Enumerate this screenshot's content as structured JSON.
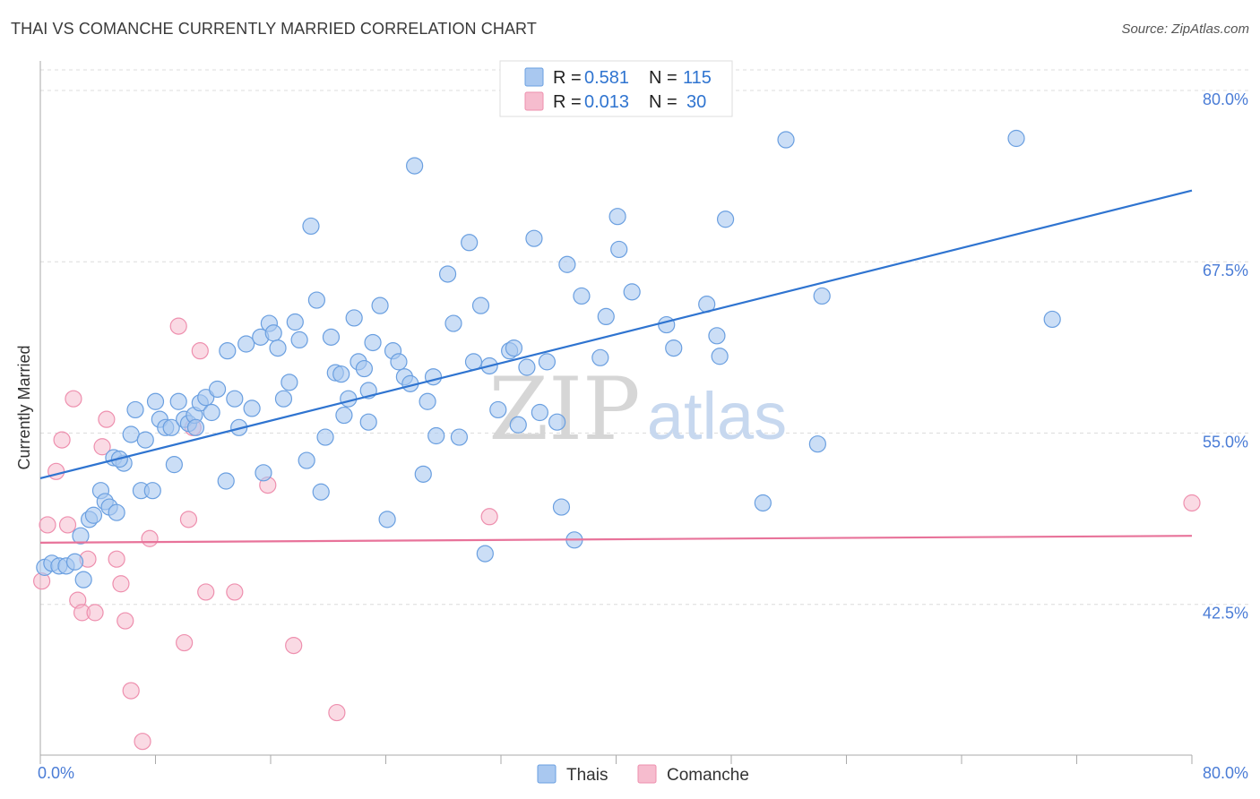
{
  "header": {
    "title": "THAI VS COMANCHE CURRENTLY MARRIED CORRELATION CHART",
    "source": "Source: ZipAtlas.com"
  },
  "watermark": {
    "part1": "ZIP",
    "part2": "atlas"
  },
  "colors": {
    "thais_fill": "#a9c8f0",
    "thais_stroke": "#6a9fe0",
    "thais_line": "#2f74d0",
    "comanche_fill": "#f6bcce",
    "comanche_stroke": "#ee8fae",
    "comanche_line": "#e8739a",
    "label_blue": "#4a7cd6",
    "grid": "#dcdcdc"
  },
  "chart_data": {
    "type": "scatter",
    "title": "THAI VS COMANCHE CURRENTLY MARRIED CORRELATION CHART",
    "xlabel": "",
    "ylabel": "Currently Married",
    "xlim": [
      0,
      80
    ],
    "ylim": [
      31.5,
      81.5
    ],
    "x_tick_labels": [
      "0.0%",
      "80.0%"
    ],
    "y_ticks": [
      42.5,
      55.0,
      67.5,
      80.0
    ],
    "y_tick_labels": [
      "42.5%",
      "55.0%",
      "67.5%",
      "80.0%"
    ],
    "grid": true,
    "legend_top": [
      {
        "name": "Thais",
        "r_label": "R =",
        "r": "0.581",
        "n_label": "N =",
        "n": "115"
      },
      {
        "name": "Comanche",
        "r_label": "R =",
        "r": "0.013",
        "n_label": "N =",
        "n": "30"
      }
    ],
    "legend_bottom": [
      "Thais",
      "Comanche"
    ],
    "series": [
      {
        "name": "Thais",
        "trend": {
          "x": [
            0,
            80
          ],
          "y": [
            51.7,
            72.7
          ]
        },
        "points": [
          [
            0.3,
            45.2
          ],
          [
            0.8,
            45.5
          ],
          [
            1.3,
            45.3
          ],
          [
            1.8,
            45.3
          ],
          [
            2.4,
            45.6
          ],
          [
            3.0,
            44.3
          ],
          [
            2.8,
            47.5
          ],
          [
            3.4,
            48.7
          ],
          [
            3.7,
            49.0
          ],
          [
            4.2,
            50.8
          ],
          [
            4.5,
            50.0
          ],
          [
            4.8,
            49.6
          ],
          [
            5.3,
            49.2
          ],
          [
            5.1,
            53.2
          ],
          [
            5.8,
            52.8
          ],
          [
            6.3,
            54.9
          ],
          [
            6.6,
            56.7
          ],
          [
            7.0,
            50.8
          ],
          [
            7.3,
            54.5
          ],
          [
            7.8,
            50.8
          ],
          [
            8.0,
            57.3
          ],
          [
            8.3,
            56.0
          ],
          [
            8.7,
            55.4
          ],
          [
            9.1,
            55.4
          ],
          [
            9.3,
            52.7
          ],
          [
            9.6,
            57.3
          ],
          [
            10.0,
            56.0
          ],
          [
            10.3,
            55.7
          ],
          [
            10.7,
            56.3
          ],
          [
            11.1,
            57.2
          ],
          [
            11.5,
            57.6
          ],
          [
            11.9,
            56.5
          ],
          [
            12.3,
            58.2
          ],
          [
            13.0,
            61.0
          ],
          [
            13.5,
            57.5
          ],
          [
            13.8,
            55.4
          ],
          [
            14.3,
            61.5
          ],
          [
            14.7,
            56.8
          ],
          [
            15.3,
            62.0
          ],
          [
            15.9,
            63.0
          ],
          [
            16.2,
            62.3
          ],
          [
            16.5,
            61.2
          ],
          [
            16.9,
            57.5
          ],
          [
            17.3,
            58.7
          ],
          [
            17.7,
            63.1
          ],
          [
            18.0,
            61.8
          ],
          [
            18.5,
            53.0
          ],
          [
            18.8,
            70.1
          ],
          [
            19.2,
            64.7
          ],
          [
            19.5,
            50.7
          ],
          [
            19.8,
            54.7
          ],
          [
            20.2,
            62.0
          ],
          [
            20.5,
            59.4
          ],
          [
            20.9,
            59.3
          ],
          [
            21.1,
            56.3
          ],
          [
            21.4,
            57.5
          ],
          [
            21.8,
            63.4
          ],
          [
            22.1,
            60.2
          ],
          [
            22.5,
            59.7
          ],
          [
            22.8,
            58.1
          ],
          [
            23.1,
            61.6
          ],
          [
            23.6,
            64.3
          ],
          [
            24.1,
            48.7
          ],
          [
            24.5,
            61.0
          ],
          [
            24.9,
            60.2
          ],
          [
            25.3,
            59.1
          ],
          [
            25.7,
            58.6
          ],
          [
            26.0,
            74.5
          ],
          [
            26.6,
            52.0
          ],
          [
            26.9,
            57.3
          ],
          [
            27.3,
            59.1
          ],
          [
            27.5,
            54.8
          ],
          [
            28.3,
            66.6
          ],
          [
            28.7,
            63.0
          ],
          [
            29.1,
            54.7
          ],
          [
            29.8,
            68.9
          ],
          [
            30.1,
            60.2
          ],
          [
            30.9,
            46.2
          ],
          [
            30.6,
            64.3
          ],
          [
            31.2,
            59.9
          ],
          [
            31.8,
            56.7
          ],
          [
            32.6,
            61.0
          ],
          [
            32.9,
            61.2
          ],
          [
            33.2,
            55.6
          ],
          [
            33.8,
            59.8
          ],
          [
            34.3,
            69.2
          ],
          [
            34.7,
            56.5
          ],
          [
            35.2,
            60.2
          ],
          [
            35.9,
            55.8
          ],
          [
            36.2,
            49.6
          ],
          [
            36.6,
            67.3
          ],
          [
            37.1,
            47.2
          ],
          [
            37.6,
            65.0
          ],
          [
            38.9,
            60.5
          ],
          [
            39.3,
            63.5
          ],
          [
            40.2,
            68.4
          ],
          [
            41.1,
            65.3
          ],
          [
            43.5,
            62.9
          ],
          [
            44.0,
            61.2
          ],
          [
            46.3,
            64.4
          ],
          [
            47.0,
            62.1
          ],
          [
            47.2,
            60.6
          ],
          [
            47.6,
            70.6
          ],
          [
            50.2,
            49.9
          ],
          [
            51.8,
            76.4
          ],
          [
            54.0,
            54.2
          ],
          [
            54.3,
            65.0
          ],
          [
            67.8,
            76.5
          ],
          [
            70.3,
            63.3
          ],
          [
            40.1,
            70.8
          ],
          [
            22.8,
            55.8
          ],
          [
            10.8,
            55.4
          ],
          [
            5.5,
            53.1
          ],
          [
            12.9,
            51.5
          ],
          [
            15.5,
            52.1
          ]
        ]
      },
      {
        "name": "Comanche",
        "trend": {
          "x": [
            0,
            80
          ],
          "y": [
            47.0,
            47.5
          ]
        },
        "points": [
          [
            0.1,
            44.2
          ],
          [
            0.5,
            48.3
          ],
          [
            1.1,
            52.2
          ],
          [
            1.5,
            54.5
          ],
          [
            1.9,
            48.3
          ],
          [
            2.3,
            57.5
          ],
          [
            2.6,
            42.8
          ],
          [
            2.9,
            41.9
          ],
          [
            3.3,
            45.8
          ],
          [
            3.8,
            41.9
          ],
          [
            4.3,
            54.0
          ],
          [
            4.6,
            56.0
          ],
          [
            5.3,
            45.8
          ],
          [
            5.6,
            44.0
          ],
          [
            5.9,
            41.3
          ],
          [
            6.3,
            36.2
          ],
          [
            7.1,
            32.5
          ],
          [
            7.6,
            47.3
          ],
          [
            9.6,
            62.8
          ],
          [
            10.0,
            39.7
          ],
          [
            10.3,
            48.7
          ],
          [
            10.6,
            55.4
          ],
          [
            11.1,
            61.0
          ],
          [
            11.5,
            43.4
          ],
          [
            13.5,
            43.4
          ],
          [
            15.8,
            51.2
          ],
          [
            17.6,
            39.5
          ],
          [
            20.6,
            34.6
          ],
          [
            31.2,
            48.9
          ],
          [
            80.0,
            49.9
          ]
        ]
      }
    ]
  }
}
